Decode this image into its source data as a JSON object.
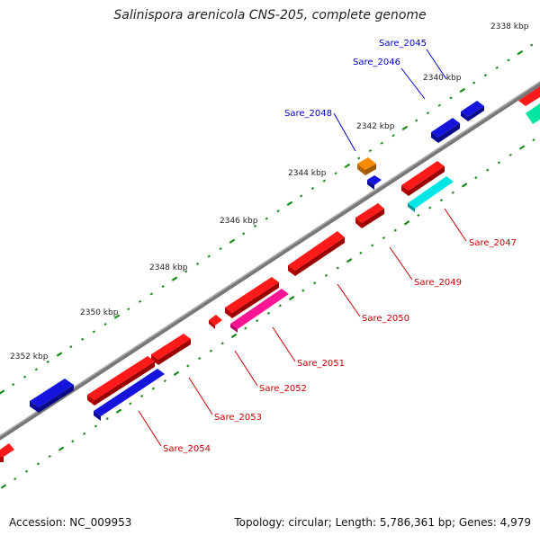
{
  "title": "Salinispora arenicola CNS-205, complete genome",
  "footer": {
    "accession": "Accession: NC_009953",
    "topology": "Topology: circular; Length: 5,786,361 bp; Genes: 4,979"
  },
  "colors": {
    "backbone": "#888888",
    "tick": "#1a8a1a",
    "forward_label": "#0000cc",
    "reverse_label": "#cc0000",
    "gene_red": "#ff1a1a",
    "gene_blue": "#1414dd",
    "gene_orange": "#ff8c00",
    "gene_magenta": "#ff1493",
    "gene_cyan": "#00e5e5",
    "gene_aqua": "#00e5a0"
  },
  "ruler_labels": [
    "2338 kbp",
    "2340 kbp",
    "2342 kbp",
    "2344 kbp",
    "2346 kbp",
    "2348 kbp",
    "2350 kbp",
    "2352 kbp"
  ],
  "gene_labels": {
    "forward": [
      "Sare_2045",
      "Sare_2046",
      "Sare_2048"
    ],
    "reverse": [
      "Sare_2047",
      "Sare_2049",
      "Sare_2050",
      "Sare_2051",
      "Sare_2052",
      "Sare_2053",
      "Sare_2054"
    ]
  }
}
